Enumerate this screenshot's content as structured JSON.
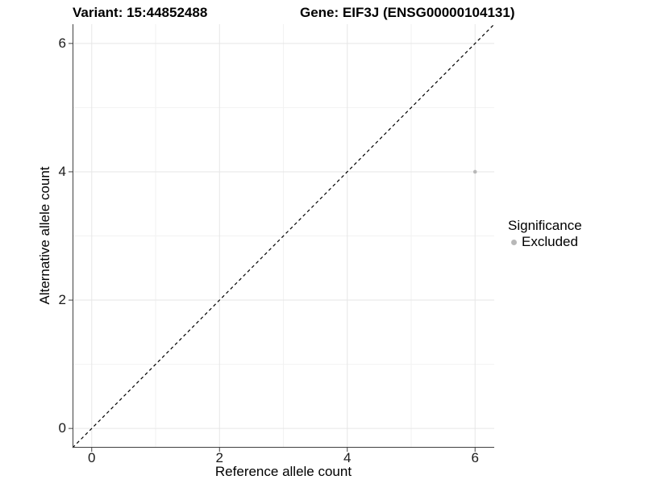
{
  "chart_data": {
    "type": "scatter",
    "title_left": "Variant: 15:44852488",
    "title_right": "Gene: EIF3J (ENSG00000104131)",
    "xlabel": "Reference allele count",
    "ylabel": "Alternative allele count",
    "xlim": [
      -0.3,
      6.3
    ],
    "ylim": [
      -0.3,
      6.3
    ],
    "x_major_ticks": [
      0,
      2,
      4,
      6
    ],
    "y_major_ticks": [
      0,
      2,
      4,
      6
    ],
    "x_minor_gridlines": [
      1,
      3,
      5
    ],
    "y_minor_gridlines": [
      1,
      3,
      5
    ],
    "grid": true,
    "points": [
      {
        "x": 6,
        "y": 4,
        "significance": "Excluded"
      }
    ],
    "point_color": "#b8b8b8",
    "point_radius": 2.3,
    "reference_line": {
      "style": "dashed",
      "slope": 1,
      "intercept": 0,
      "color": "#000000"
    },
    "legend": {
      "title": "Significance",
      "position": "right",
      "items": [
        {
          "label": "Excluded",
          "color": "#b8b8b8"
        }
      ]
    },
    "colors": {
      "grid_major": "#e6e6e6",
      "grid_minor": "#f2f2f2",
      "axis_line": "#404040",
      "tick_mark": "#404040"
    }
  }
}
